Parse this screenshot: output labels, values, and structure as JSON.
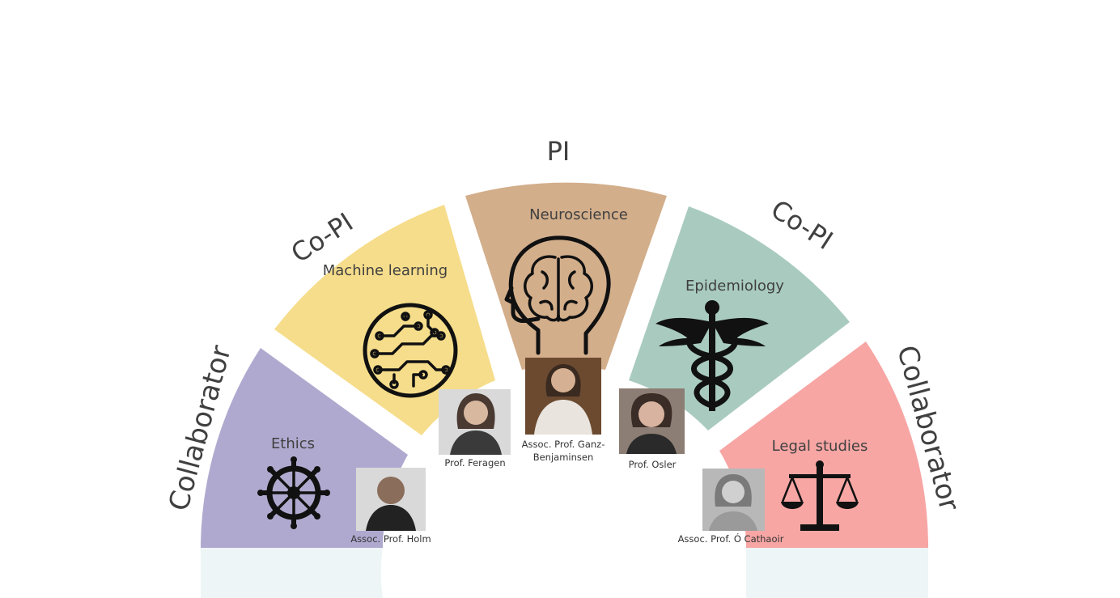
{
  "roles": {
    "pi": "PI",
    "co_pi_left": "Co-PI",
    "co_pi_right": "Co-PI",
    "collaborator_left": "Collaborator",
    "collaborator_right": "Collaborator"
  },
  "sectors": [
    {
      "field": "Ethics",
      "color": "#b0a9cf",
      "icon": "dharma-wheel-icon"
    },
    {
      "field": "Machine learning",
      "color": "#f6dd8b",
      "icon": "circuit-chip-icon"
    },
    {
      "field": "Neuroscience",
      "color": "#d3ae8b",
      "icon": "brain-head-icon"
    },
    {
      "field": "Epidemiology",
      "color": "#a9cbbf",
      "icon": "caduceus-icon"
    },
    {
      "field": "Legal studies",
      "color": "#f7a6a4",
      "icon": "scales-icon"
    }
  ],
  "people": [
    {
      "caption": "Assoc. Prof. Holm"
    },
    {
      "caption": "Prof. Feragen"
    },
    {
      "caption_line1": "Assoc. Prof. Ganz-",
      "caption_line2": "Benjaminsen"
    },
    {
      "caption": "Prof. Osler"
    },
    {
      "caption": "Assoc. Prof. Ó Cathaoir"
    }
  ],
  "colors": {
    "base_band": "#edf5f6",
    "label_text": "#404040",
    "icon": "#111111"
  }
}
